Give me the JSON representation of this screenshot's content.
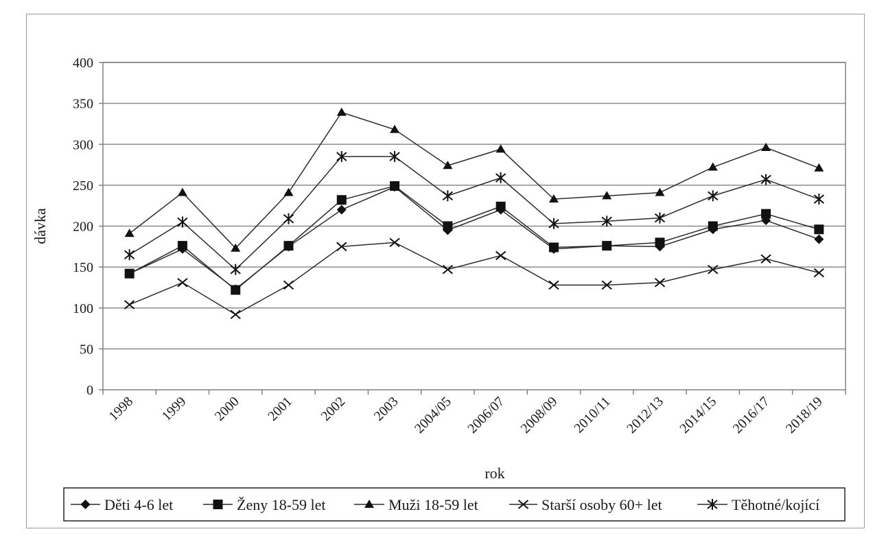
{
  "chart_data": {
    "type": "line",
    "title": "",
    "xlabel": "rok",
    "ylabel": "dávka",
    "ylim": [
      0,
      400
    ],
    "yticks": [
      0,
      50,
      100,
      150,
      200,
      250,
      300,
      350,
      400
    ],
    "grid": true,
    "legend_position": "bottom",
    "categories": [
      "1998",
      "1999",
      "2000",
      "2001",
      "2002",
      "2003",
      "2004/05",
      "2006/07",
      "2008/09",
      "2010/11",
      "2012/13",
      "2014/15",
      "2016/17",
      "2018/19"
    ],
    "series": [
      {
        "name": "Děti 4-6 let",
        "marker": "diamond",
        "values": [
          142,
          172,
          123,
          175,
          220,
          248,
          195,
          220,
          172,
          176,
          175,
          196,
          207,
          184
        ]
      },
      {
        "name": "Ženy 18-59 let",
        "marker": "square",
        "values": [
          142,
          176,
          122,
          176,
          232,
          249,
          200,
          224,
          174,
          176,
          180,
          200,
          215,
          196
        ]
      },
      {
        "name": "Muži 18-59 let",
        "marker": "triangle",
        "values": [
          191,
          241,
          173,
          241,
          339,
          318,
          274,
          294,
          233,
          237,
          241,
          272,
          296,
          271
        ]
      },
      {
        "name": "Starší osoby 60+ let",
        "marker": "x",
        "values": [
          104,
          131,
          92,
          128,
          175,
          180,
          147,
          164,
          128,
          128,
          131,
          147,
          160,
          143
        ]
      },
      {
        "name": "Těhotné/kojící",
        "marker": "star",
        "values": [
          165,
          205,
          147,
          209,
          285,
          285,
          237,
          259,
          203,
          206,
          210,
          237,
          257,
          233
        ]
      }
    ]
  }
}
